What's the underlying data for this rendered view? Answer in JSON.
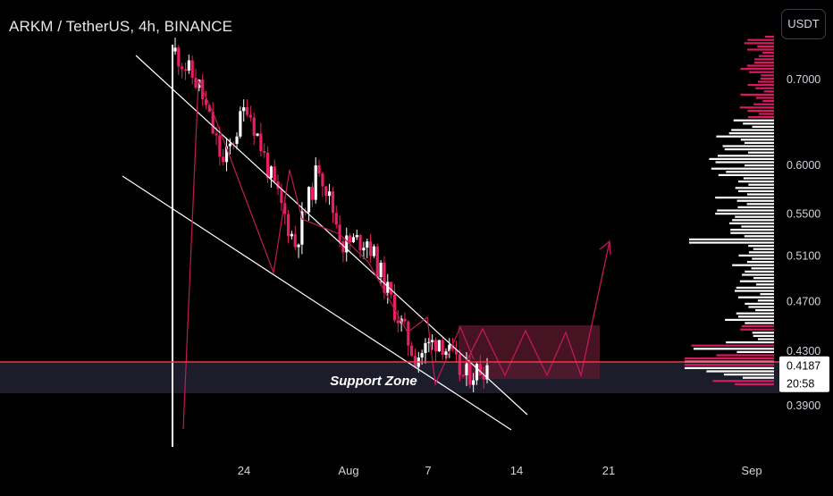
{
  "header": {
    "title": "ARKM / TetherUS, 4h, BINANCE",
    "currency_label": "USDT"
  },
  "price_axis": {
    "ticks": [
      "0.7000",
      "0.6000",
      "0.5500",
      "0.5100",
      "0.4700",
      "0.4300",
      "0.3900"
    ],
    "tick_values": [
      0.7,
      0.6,
      0.55,
      0.51,
      0.47,
      0.43,
      0.39
    ],
    "last_price_label": "0.4187",
    "countdown_label": "20:58",
    "last_price": 0.4187
  },
  "time_axis": {
    "ticks": [
      "24",
      "Aug",
      "7",
      "14",
      "21",
      "Sep"
    ]
  },
  "annotations": {
    "support_zone_label": "Support Zone"
  },
  "colors": {
    "background": "#000000",
    "candle_up": "#ffffff",
    "candle_down": "#e91e63",
    "trend_line": "#ffffff",
    "support_line": "#f23645",
    "support_zone": "#1c1c2a",
    "projection_box": "#5c1a2e",
    "projection_path": "#c2185b",
    "volume_profile_up": "#ffffff",
    "volume_profile_down": "#d81b60"
  },
  "chart_data": {
    "type": "candlestick",
    "symbol": "ARKM/USDT",
    "interval": "4h",
    "exchange": "BINANCE",
    "y_scale": "log",
    "ylim": [
      0.365,
      0.8
    ],
    "close_path_keypoints": [
      {
        "t": "Jul 18",
        "price": 0.735
      },
      {
        "t": "Jul 19",
        "price": 0.69
      },
      {
        "t": "Jul 20",
        "price": 0.6
      },
      {
        "t": "Jul 22",
        "price": 0.67
      },
      {
        "t": "Jul 24",
        "price": 0.585
      },
      {
        "t": "Jul 26",
        "price": 0.52
      },
      {
        "t": "Jul 28",
        "price": 0.6
      },
      {
        "t": "Jul 30",
        "price": 0.52
      },
      {
        "t": "Aug 2",
        "price": 0.525
      },
      {
        "t": "Aug 4",
        "price": 0.47
      },
      {
        "t": "Aug 7",
        "price": 0.425
      },
      {
        "t": "Aug 8",
        "price": 0.44
      },
      {
        "t": "Aug 9",
        "price": 0.41
      },
      {
        "t": "Aug 11",
        "price": 0.4187
      }
    ],
    "support_level": 0.4187,
    "support_zone": [
      0.395,
      0.4187
    ]
  }
}
